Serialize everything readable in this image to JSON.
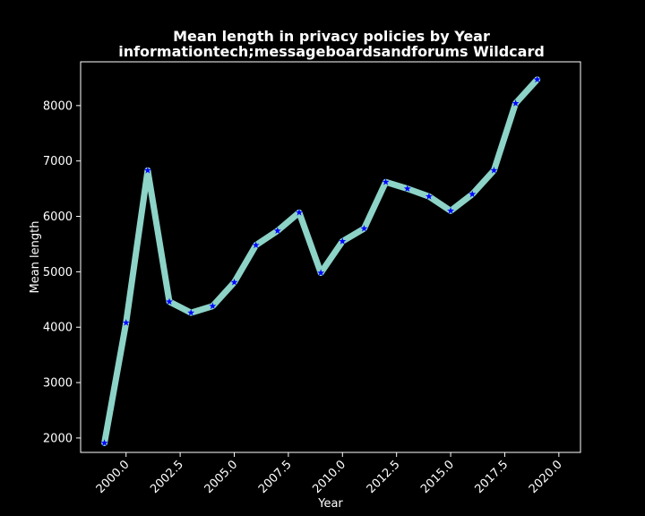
{
  "chart_data": {
    "type": "line",
    "title_line1": "Mean length in privacy policies by Year",
    "title_line2": "informationtech;messageboardsandforums Wildcard",
    "xlabel": "Year",
    "ylabel": "Mean length",
    "xlim": [
      1997.9,
      2021.0
    ],
    "ylim": [
      1740,
      8790
    ],
    "x_ticks": [
      "2000.0",
      "2002.5",
      "2005.0",
      "2007.5",
      "2010.0",
      "2012.5",
      "2015.0",
      "2017.5",
      "2020.0"
    ],
    "x_tick_values": [
      2000,
      2002.5,
      2005,
      2007.5,
      2010,
      2012.5,
      2015,
      2017.5,
      2020
    ],
    "y_ticks": [
      "2000",
      "3000",
      "4000",
      "5000",
      "6000",
      "7000",
      "8000"
    ],
    "y_tick_values": [
      2000,
      3000,
      4000,
      5000,
      6000,
      7000,
      8000
    ],
    "line_color": "#8dd3c7",
    "marker_color": "#0000ff",
    "background": "#000000",
    "grid": false,
    "series": [
      {
        "x": [
          1999,
          2000,
          2001,
          2002,
          2003,
          2004,
          2005,
          2006,
          2007,
          2008,
          2009,
          2010,
          2011,
          2012,
          2013,
          2014,
          2015,
          2016,
          2017,
          2018,
          2019
        ],
        "values": [
          1910,
          4080,
          6830,
          4460,
          4260,
          4380,
          4810,
          5480,
          5740,
          6070,
          4980,
          5550,
          5780,
          6620,
          6500,
          6360,
          6100,
          6400,
          6830,
          8040,
          8470
        ]
      }
    ]
  }
}
